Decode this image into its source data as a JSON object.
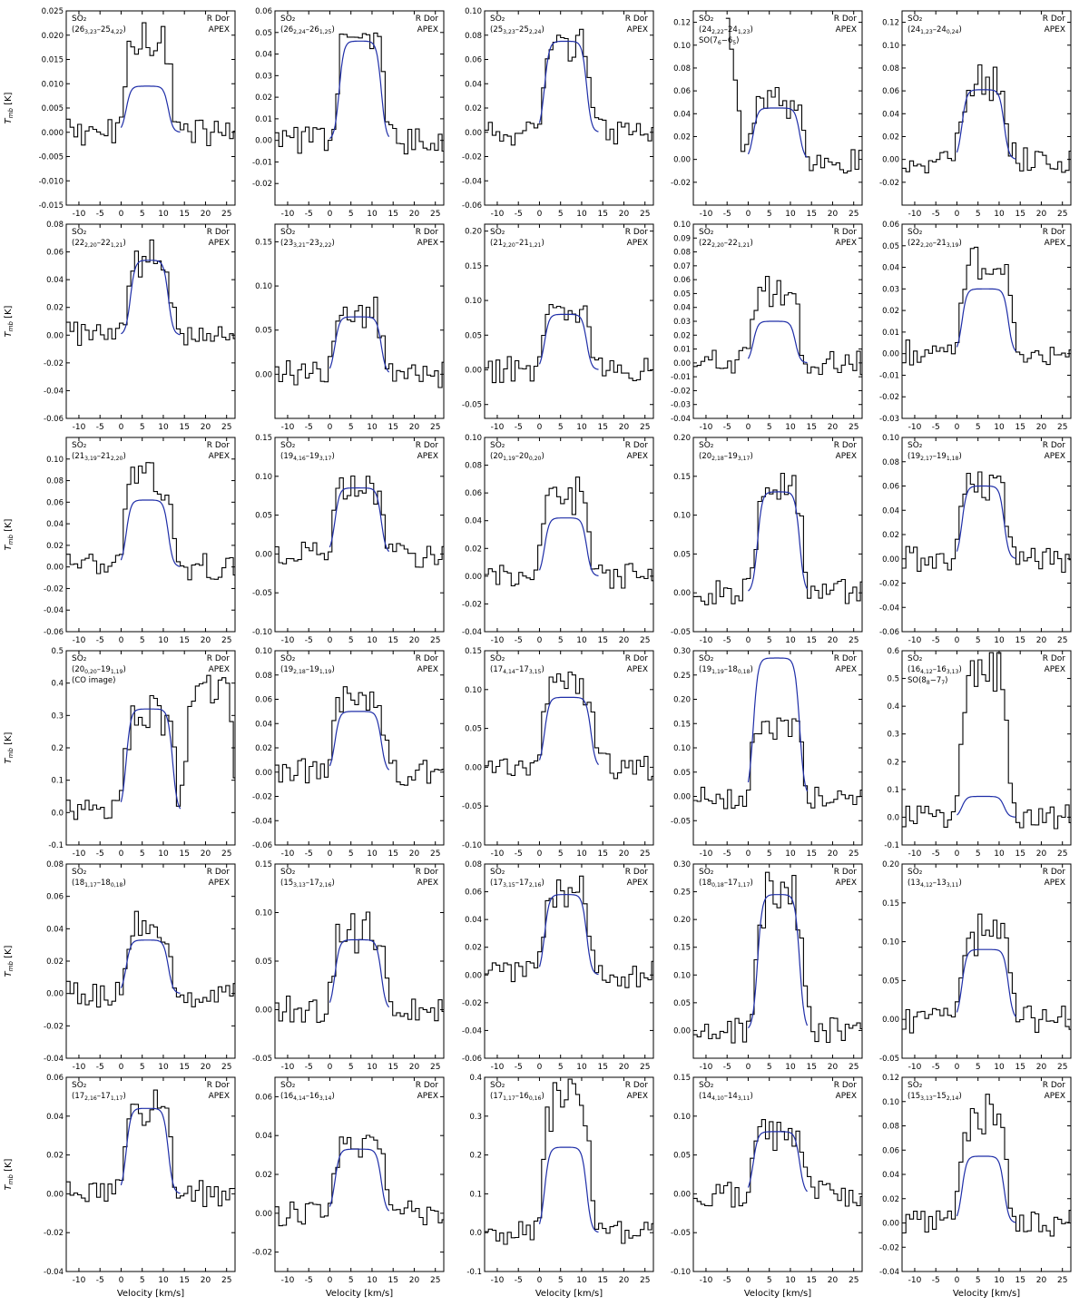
{
  "figure": {
    "y_axis_label": "T_mb [K]",
    "x_axis_label": "Velocity [km/s]"
  },
  "colors": {
    "data": "#000000",
    "model": "#1f2ea8",
    "axes": "#000000"
  },
  "x_ticks": [
    -10,
    -5,
    0,
    5,
    10,
    15,
    20,
    25
  ],
  "x_range": [
    -13,
    27
  ],
  "chart_data": [
    {
      "type": "line",
      "species": "SO₂",
      "transition": "(26_{3,23}–25_{4,22})",
      "source": "R Dor",
      "telescope": "APEX",
      "xlim": [
        -13,
        27
      ],
      "ylim": [
        -0.015,
        0.025
      ],
      "yticks": [
        "-0.015",
        "-0.010",
        "-0.005",
        "0.000",
        "0.005",
        "0.010",
        "0.015",
        "0.020",
        "0.025"
      ],
      "model_peak": 0.0095,
      "model_v": [
        0,
        12
      ],
      "data_peak": 0.02,
      "line_width": 1.0
    },
    {
      "type": "line",
      "species": "SO₂",
      "transition": "(26_{2,24}–26_{1,25})",
      "source": "R Dor",
      "telescope": "APEX",
      "xlim": [
        -13,
        27
      ],
      "ylim": [
        -0.03,
        0.06
      ],
      "yticks": [
        "-0.02",
        "-0.01",
        "0.00",
        "0.01",
        "0.02",
        "0.03",
        "0.04",
        "0.05",
        "0.06"
      ],
      "model_peak": 0.046,
      "model_v": [
        1,
        13
      ],
      "data_peak": 0.05,
      "line_width": 1.0
    },
    {
      "type": "line",
      "species": "SO₂",
      "transition": "(25_{3,23}–25_{2,24})",
      "source": "R Dor",
      "telescope": "APEX",
      "xlim": [
        -13,
        27
      ],
      "ylim": [
        -0.06,
        0.1
      ],
      "yticks": [
        "-0.06",
        "-0.04",
        "-0.02",
        "0.00",
        "0.02",
        "0.04",
        "0.06",
        "0.08",
        "0.10"
      ],
      "model_peak": 0.075,
      "model_v": [
        0,
        12
      ],
      "data_peak": 0.075,
      "line_width": 1.0
    },
    {
      "type": "line",
      "species": "SO₂",
      "transition": "(24_{2,22}–24_{1,23})",
      "extra_label": "SO(7_6−6_5)",
      "source": "R Dor",
      "telescope": "APEX",
      "xlim": [
        -13,
        27
      ],
      "ylim": [
        -0.04,
        0.13
      ],
      "yticks": [
        "-0.02",
        "0.00",
        "0.02",
        "0.04",
        "0.06",
        "0.08",
        "0.10",
        "0.12"
      ],
      "model_peak": 0.045,
      "model_v": [
        0,
        13
      ],
      "data_peak": 0.05,
      "line_width": 1.0
    },
    {
      "type": "line",
      "species": "SO₂",
      "transition": "(24_{1,23}–24_{0,24})",
      "source": "R Dor",
      "telescope": "APEX",
      "xlim": [
        -13,
        27
      ],
      "ylim": [
        -0.04,
        0.13
      ],
      "yticks": [
        "-0.02",
        "0.00",
        "0.02",
        "0.04",
        "0.06",
        "0.08",
        "0.10",
        "0.12"
      ],
      "model_peak": 0.061,
      "model_v": [
        0,
        12
      ],
      "data_peak": 0.065,
      "line_width": 1.0
    },
    {
      "type": "line",
      "species": "SO₂",
      "transition": "(22_{2,20}–22_{1,21})",
      "source": "R Dor",
      "telescope": "APEX",
      "xlim": [
        -13,
        27
      ],
      "ylim": [
        -0.06,
        0.08
      ],
      "yticks": [
        "-0.06",
        "-0.04",
        "-0.02",
        "0.00",
        "0.02",
        "0.04",
        "0.06",
        "0.08"
      ],
      "model_peak": 0.054,
      "model_v": [
        1,
        12
      ],
      "data_peak": 0.055,
      "line_width": 1.0
    },
    {
      "type": "line",
      "species": "SO₂",
      "transition": "(23_{3,21}–23_{2,22})",
      "source": "R Dor",
      "telescope": "APEX",
      "xlim": [
        -13,
        27
      ],
      "ylim": [
        -0.05,
        0.17
      ],
      "yticks": [
        "0.00",
        "0.05",
        "0.10",
        "0.15"
      ],
      "model_peak": 0.065,
      "model_v": [
        0,
        13
      ],
      "data_peak": 0.07,
      "line_width": 1.0
    },
    {
      "type": "line",
      "species": "SO₂",
      "transition": "(21_{2,20}–21_{1,21})",
      "source": "R Dor",
      "telescope": "APEX",
      "xlim": [
        -13,
        27
      ],
      "ylim": [
        -0.07,
        0.21
      ],
      "yticks": [
        "-0.05",
        "0.00",
        "0.05",
        "0.10",
        "0.15",
        "0.20"
      ],
      "model_peak": 0.08,
      "model_v": [
        0,
        12
      ],
      "data_peak": 0.09,
      "line_width": 1.0
    },
    {
      "type": "line",
      "species": "SO₂",
      "transition": "(22_{2,20}–22_{1,21})",
      "source": "R Dor",
      "telescope": "APEX",
      "xlim": [
        -13,
        27
      ],
      "ylim": [
        -0.04,
        0.1
      ],
      "yticks": [
        "-0.04",
        "-0.03",
        "-0.02",
        "-0.01",
        "0.00",
        "0.01",
        "0.02",
        "0.03",
        "0.04",
        "0.05",
        "0.06",
        "0.07",
        "0.08",
        "0.09",
        "0.10"
      ],
      "model_peak": 0.03,
      "model_v": [
        0,
        12
      ],
      "data_peak": 0.055,
      "line_width": 1.0
    },
    {
      "type": "line",
      "species": "SO₂",
      "transition": "(22_{2,20}–21_{3,19})",
      "source": "R Dor",
      "telescope": "APEX",
      "xlim": [
        -13,
        27
      ],
      "ylim": [
        -0.03,
        0.06
      ],
      "yticks": [
        "-0.03",
        "-0.02",
        "-0.01",
        "0.00",
        "0.01",
        "0.02",
        "0.03",
        "0.04",
        "0.05",
        "0.06"
      ],
      "model_peak": 0.03,
      "model_v": [
        0,
        13
      ],
      "data_peak": 0.04,
      "line_width": 1.0
    },
    {
      "type": "line",
      "species": "SO₂",
      "transition": "(21_{3,19}–21_{2,20})",
      "source": "R Dor",
      "telescope": "APEX",
      "xlim": [
        -13,
        27
      ],
      "ylim": [
        -0.06,
        0.12
      ],
      "yticks": [
        "-0.06",
        "-0.04",
        "-0.02",
        "0.00",
        "0.02",
        "0.04",
        "0.06",
        "0.08",
        "0.10"
      ],
      "model_peak": 0.062,
      "model_v": [
        0,
        12
      ],
      "data_peak": 0.09,
      "line_width": 1.0
    },
    {
      "type": "line",
      "species": "SO₂",
      "transition": "(19_{4,16}–19_{3,17})",
      "source": "R Dor",
      "telescope": "APEX",
      "xlim": [
        -13,
        27
      ],
      "ylim": [
        -0.1,
        0.15
      ],
      "yticks": [
        "-0.10",
        "-0.05",
        "0.00",
        "0.05",
        "0.10",
        "0.15"
      ],
      "model_peak": 0.085,
      "model_v": [
        0,
        13
      ],
      "data_peak": 0.09,
      "line_width": 1.0
    },
    {
      "type": "line",
      "species": "SO₂",
      "transition": "(20_{1,19}–20_{0,20})",
      "source": "R Dor",
      "telescope": "APEX",
      "xlim": [
        -13,
        27
      ],
      "ylim": [
        -0.04,
        0.1
      ],
      "yticks": [
        "-0.04",
        "-0.02",
        "0.00",
        "0.02",
        "0.04",
        "0.06",
        "0.08",
        "0.10"
      ],
      "model_peak": 0.042,
      "model_v": [
        0,
        12
      ],
      "data_peak": 0.06,
      "line_width": 1.0
    },
    {
      "type": "line",
      "species": "SO₂",
      "transition": "(20_{2,18}–19_{3,17})",
      "source": "R Dor",
      "telescope": "APEX",
      "xlim": [
        -13,
        27
      ],
      "ylim": [
        -0.05,
        0.2
      ],
      "yticks": [
        "-0.05",
        "0.00",
        "0.05",
        "0.10",
        "0.15",
        "0.20"
      ],
      "model_peak": 0.13,
      "model_v": [
        1,
        13
      ],
      "data_peak": 0.13,
      "line_width": 1.0
    },
    {
      "type": "line",
      "species": "SO₂",
      "transition": "(19_{2,17}–19_{1,18})",
      "source": "R Dor",
      "telescope": "APEX",
      "xlim": [
        -13,
        27
      ],
      "ylim": [
        -0.06,
        0.1
      ],
      "yticks": [
        "-0.06",
        "-0.04",
        "-0.02",
        "0.00",
        "0.02",
        "0.04",
        "0.06",
        "0.08",
        "0.10"
      ],
      "model_peak": 0.06,
      "model_v": [
        0,
        12
      ],
      "data_peak": 0.065,
      "line_width": 1.0
    },
    {
      "type": "line",
      "species": "SO₂",
      "transition": "(20_{0,20}–19_{1,19})",
      "extra_label": "(CO image)",
      "source": "R Dor",
      "telescope": "APEX",
      "xlim": [
        -13,
        27
      ],
      "ylim": [
        -0.1,
        0.5
      ],
      "yticks": [
        "-0.1",
        "0.0",
        "0.1",
        "0.2",
        "0.3",
        "0.4",
        "0.5"
      ],
      "model_peak": 0.32,
      "model_v": [
        0,
        13
      ],
      "data_peak": 0.3,
      "line_width": 1.0,
      "blend_peak": 0.4
    },
    {
      "type": "line",
      "species": "SO₂",
      "transition": "(19_{2,18}–19_{1,19})",
      "source": "R Dor",
      "telescope": "APEX",
      "xlim": [
        -13,
        27
      ],
      "ylim": [
        -0.06,
        0.1
      ],
      "yticks": [
        "-0.06",
        "-0.04",
        "-0.02",
        "0.00",
        "0.02",
        "0.04",
        "0.06",
        "0.08",
        "0.10"
      ],
      "model_peak": 0.05,
      "model_v": [
        0,
        13
      ],
      "data_peak": 0.06,
      "line_width": 1.0
    },
    {
      "type": "line",
      "species": "SO₂",
      "transition": "(17_{4,14}–17_{3,15})",
      "source": "R Dor",
      "telescope": "APEX",
      "xlim": [
        -13,
        27
      ],
      "ylim": [
        -0.1,
        0.15
      ],
      "yticks": [
        "-0.10",
        "-0.05",
        "0.00",
        "0.05",
        "0.10",
        "0.15"
      ],
      "model_peak": 0.09,
      "model_v": [
        0,
        13
      ],
      "data_peak": 0.1,
      "line_width": 1.0
    },
    {
      "type": "line",
      "species": "SO₂",
      "transition": "(19_{1,19}–18_{0,18})",
      "source": "R Dor",
      "telescope": "APEX",
      "xlim": [
        -13,
        27
      ],
      "ylim": [
        -0.1,
        0.3
      ],
      "yticks": [
        "-0.05",
        "0.00",
        "0.05",
        "0.10",
        "0.15",
        "0.20",
        "0.25",
        "0.30"
      ],
      "model_peak": 0.285,
      "model_v": [
        0,
        13
      ],
      "data_peak": 0.15,
      "line_width": 1.0
    },
    {
      "type": "line",
      "species": "SO₂",
      "transition": "(16_{4,12}–16_{3,13})",
      "extra_label": "SO(8_8−7_7)",
      "source": "R Dor",
      "telescope": "APEX",
      "xlim": [
        -13,
        27
      ],
      "ylim": [
        -0.1,
        0.6
      ],
      "yticks": [
        "-0.1",
        "0.0",
        "0.1",
        "0.2",
        "0.3",
        "0.4",
        "0.5",
        "0.6"
      ],
      "model_peak": 0.075,
      "model_v": [
        0,
        12
      ],
      "data_peak": 0.55,
      "line_width": 1.0
    },
    {
      "type": "line",
      "species": "SO₂",
      "transition": "(18_{1,17}–18_{0,18})",
      "source": "R Dor",
      "telescope": "APEX",
      "xlim": [
        -13,
        27
      ],
      "ylim": [
        -0.04,
        0.08
      ],
      "yticks": [
        "-0.04",
        "-0.02",
        "0.00",
        "0.02",
        "0.04",
        "0.06",
        "0.08"
      ],
      "model_peak": 0.033,
      "model_v": [
        0,
        12
      ],
      "data_peak": 0.04,
      "line_width": 1.0
    },
    {
      "type": "line",
      "species": "SO₂",
      "transition": "(15_{3,13}–17_{2,16})",
      "source": "R Dor",
      "telescope": "APEX",
      "xlim": [
        -13,
        27
      ],
      "ylim": [
        -0.05,
        0.15
      ],
      "yticks": [
        "-0.05",
        "0.00",
        "0.05",
        "0.10",
        "0.15"
      ],
      "model_peak": 0.072,
      "model_v": [
        0,
        13
      ],
      "data_peak": 0.08,
      "line_width": 1.0
    },
    {
      "type": "line",
      "species": "SO₂",
      "transition": "(17_{3,15}–17_{2,16})",
      "source": "R Dor",
      "telescope": "APEX",
      "xlim": [
        -13,
        27
      ],
      "ylim": [
        -0.06,
        0.08
      ],
      "yticks": [
        "-0.06",
        "-0.04",
        "-0.02",
        "0.00",
        "0.02",
        "0.04",
        "0.06",
        "0.08"
      ],
      "model_peak": 0.058,
      "model_v": [
        0,
        12
      ],
      "data_peak": 0.06,
      "line_width": 1.0
    },
    {
      "type": "line",
      "species": "SO₂",
      "transition": "(18_{0,18}–17_{1,17})",
      "source": "R Dor",
      "telescope": "APEX",
      "xlim": [
        -13,
        27
      ],
      "ylim": [
        -0.05,
        0.3
      ],
      "yticks": [
        "0.00",
        "0.05",
        "0.10",
        "0.15",
        "0.20",
        "0.25",
        "0.30"
      ],
      "model_peak": 0.245,
      "model_v": [
        1,
        13
      ],
      "data_peak": 0.24,
      "line_width": 1.0
    },
    {
      "type": "line",
      "species": "SO₂",
      "transition": "(13_{4,12}–13_{3,11})",
      "source": "R Dor",
      "telescope": "APEX",
      "xlim": [
        -13,
        27
      ],
      "ylim": [
        -0.05,
        0.2
      ],
      "yticks": [
        "-0.05",
        "0.00",
        "0.05",
        "0.10",
        "0.15",
        "0.20"
      ],
      "model_peak": 0.09,
      "model_v": [
        0,
        13
      ],
      "data_peak": 0.11,
      "line_width": 1.0
    },
    {
      "type": "line",
      "species": "SO₂",
      "transition": "(17_{2,16}–17_{1,17})",
      "source": "R Dor",
      "telescope": "APEX",
      "xlim": [
        -13,
        27
      ],
      "ylim": [
        -0.04,
        0.06
      ],
      "yticks": [
        "-0.04",
        "-0.02",
        "0.00",
        "0.02",
        "0.04",
        "0.06"
      ],
      "model_peak": 0.044,
      "model_v": [
        0,
        12
      ],
      "data_peak": 0.048,
      "line_width": 1.0
    },
    {
      "type": "line",
      "species": "SO₂",
      "transition": "(16_{4,14}–16_{3,14})",
      "source": "R Dor",
      "telescope": "APEX",
      "xlim": [
        -13,
        27
      ],
      "ylim": [
        -0.03,
        0.07
      ],
      "yticks": [
        "-0.02",
        "0.00",
        "0.02",
        "0.04",
        "0.06"
      ],
      "model_peak": 0.033,
      "model_v": [
        0,
        13
      ],
      "data_peak": 0.04,
      "line_width": 1.0
    },
    {
      "type": "line",
      "species": "SO₂",
      "transition": "(17_{1,17}–16_{0,16})",
      "source": "R Dor",
      "telescope": "APEX",
      "xlim": [
        -13,
        27
      ],
      "ylim": [
        -0.1,
        0.4
      ],
      "yticks": [
        "-0.1",
        "0.0",
        "0.1",
        "0.2",
        "0.3",
        "0.4"
      ],
      "model_peak": 0.22,
      "model_v": [
        0,
        12
      ],
      "data_peak": 0.35,
      "line_width": 1.0
    },
    {
      "type": "line",
      "species": "SO₂",
      "transition": "(14_{4,10}–14_{3,11})",
      "source": "R Dor",
      "telescope": "APEX",
      "xlim": [
        -13,
        27
      ],
      "ylim": [
        -0.1,
        0.15
      ],
      "yticks": [
        "-0.10",
        "-0.05",
        "0.00",
        "0.05",
        "0.10",
        "0.15"
      ],
      "model_peak": 0.08,
      "model_v": [
        0,
        13
      ],
      "data_peak": 0.085,
      "line_width": 1.0
    },
    {
      "type": "line",
      "species": "SO₂",
      "transition": "(15_{3,13}–15_{2,14})",
      "source": "R Dor",
      "telescope": "APEX",
      "xlim": [
        -13,
        27
      ],
      "ylim": [
        -0.04,
        0.12
      ],
      "yticks": [
        "-0.04",
        "-0.02",
        "0.00",
        "0.02",
        "0.04",
        "0.06",
        "0.08",
        "0.10",
        "0.12"
      ],
      "model_peak": 0.055,
      "model_v": [
        0,
        12
      ],
      "data_peak": 0.09,
      "line_width": 1.0
    }
  ]
}
